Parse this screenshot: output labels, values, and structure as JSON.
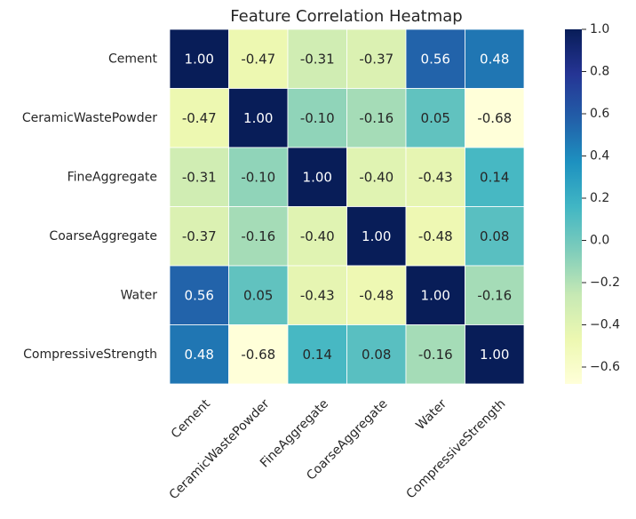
{
  "chart_data": {
    "type": "heatmap",
    "title": "Feature Correlation Heatmap",
    "rows": [
      "Cement",
      "CeramicWastePowder",
      "FineAggregate",
      "CoarseAggregate",
      "Water",
      "CompressiveStrength"
    ],
    "columns": [
      "Cement",
      "CeramicWastePowder",
      "FineAggregate",
      "CoarseAggregate",
      "Water",
      "CompressiveStrength"
    ],
    "values": [
      [
        1.0,
        -0.47,
        -0.31,
        -0.37,
        0.56,
        0.48
      ],
      [
        -0.47,
        1.0,
        -0.1,
        -0.16,
        0.05,
        -0.68
      ],
      [
        -0.31,
        -0.1,
        1.0,
        -0.4,
        -0.43,
        0.14
      ],
      [
        -0.37,
        -0.16,
        -0.4,
        1.0,
        -0.48,
        0.08
      ],
      [
        0.56,
        0.05,
        -0.43,
        -0.48,
        1.0,
        -0.16
      ],
      [
        0.48,
        -0.68,
        0.14,
        0.08,
        -0.16,
        1.0
      ]
    ],
    "value_format": "0.00",
    "colormap": "YlGnBu",
    "colormap_stops": [
      "#ffffd9",
      "#edf8b1",
      "#c7e9b4",
      "#7fcdbb",
      "#41b6c4",
      "#1d91c0",
      "#225ea8",
      "#253494",
      "#081d58"
    ],
    "color_range": [
      -0.68,
      1.0
    ],
    "colorbar_ticks": [
      1.0,
      0.8,
      0.6,
      0.4,
      0.2,
      0.0,
      -0.2,
      -0.4,
      -0.6
    ],
    "colorbar_tick_labels": [
      "1.0",
      "0.8",
      "0.6",
      "0.4",
      "0.2",
      "0.0",
      "−0.2",
      "−0.4",
      "−0.6"
    ],
    "cell_border_color": "#ffffff",
    "text_color_dark": "#262626",
    "text_color_light": "#ffffff"
  }
}
